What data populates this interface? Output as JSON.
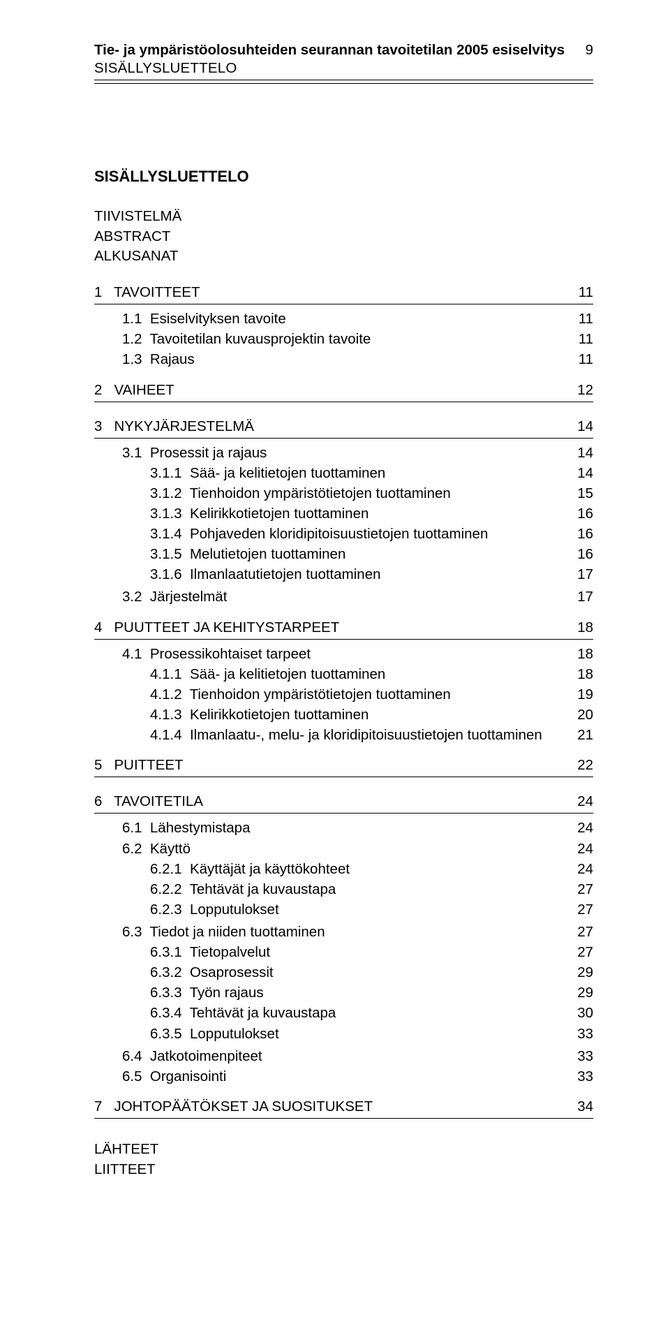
{
  "header": {
    "title": "Tie- ja ympäristöolosuhteiden seurannan tavoitetilan 2005 esiselvitys",
    "page_number": "9",
    "subtitle": "SISÄLLYSLUETTELO"
  },
  "toc_title": "SISÄLLYSLUETTELO",
  "preface": [
    "TIIVISTELMÄ",
    "ABSTRACT",
    "ALKUSANAT"
  ],
  "sections": [
    {
      "type": "lvl1",
      "num": "1",
      "text": "TAVOITTEET",
      "page": "11"
    },
    {
      "type": "lvl2",
      "num": "1.1",
      "text": "Esiselvityksen tavoite",
      "page": "11"
    },
    {
      "type": "lvl2",
      "num": "1.2",
      "text": "Tavoitetilan kuvausprojektin tavoite",
      "page": "11"
    },
    {
      "type": "lvl2",
      "num": "1.3",
      "text": "Rajaus",
      "page": "11"
    },
    {
      "type": "lvl1",
      "num": "2",
      "text": "VAIHEET",
      "page": "12"
    },
    {
      "type": "lvl1",
      "num": "3",
      "text": "NYKYJÄRJESTELMÄ",
      "page": "14"
    },
    {
      "type": "lvl2",
      "num": "3.1",
      "text": "Prosessit ja rajaus",
      "page": "14"
    },
    {
      "type": "lvl3",
      "num": "3.1.1",
      "text": "Sää- ja kelitietojen tuottaminen",
      "page": "14"
    },
    {
      "type": "lvl3",
      "num": "3.1.2",
      "text": "Tienhoidon ympäristötietojen tuottaminen",
      "page": "15"
    },
    {
      "type": "lvl3",
      "num": "3.1.3",
      "text": "Kelirikkotietojen tuottaminen",
      "page": "16"
    },
    {
      "type": "lvl3",
      "num": "3.1.4",
      "text": "Pohjaveden kloridipitoisuustietojen tuottaminen",
      "page": "16"
    },
    {
      "type": "lvl3",
      "num": "3.1.5",
      "text": "Melutietojen tuottaminen",
      "page": "16"
    },
    {
      "type": "lvl3",
      "num": "3.1.6",
      "text": "Ilmanlaatutietojen tuottaminen",
      "page": "17"
    },
    {
      "type": "lvl2",
      "num": "3.2",
      "text": "Järjestelmät",
      "page": "17"
    },
    {
      "type": "lvl1",
      "num": "4",
      "text": "PUUTTEET JA KEHITYSTARPEET",
      "page": "18"
    },
    {
      "type": "lvl2",
      "num": "4.1",
      "text": "Prosessikohtaiset tarpeet",
      "page": "18"
    },
    {
      "type": "lvl3",
      "num": "4.1.1",
      "text": "Sää- ja kelitietojen tuottaminen",
      "page": "18"
    },
    {
      "type": "lvl3",
      "num": "4.1.2",
      "text": "Tienhoidon ympäristötietojen tuottaminen",
      "page": "19"
    },
    {
      "type": "lvl3",
      "num": "4.1.3",
      "text": "Kelirikkotietojen tuottaminen",
      "page": "20"
    },
    {
      "type": "lvl3",
      "num": "4.1.4",
      "text": "Ilmanlaatu-, melu- ja kloridipitoisuustietojen tuottaminen",
      "page": "21"
    },
    {
      "type": "lvl1",
      "num": "5",
      "text": "PUITTEET",
      "page": "22"
    },
    {
      "type": "lvl1",
      "num": "6",
      "text": "TAVOITETILA",
      "page": "24"
    },
    {
      "type": "lvl2",
      "num": "6.1",
      "text": "Lähestymistapa",
      "page": "24"
    },
    {
      "type": "lvl2",
      "num": "6.2",
      "text": "Käyttö",
      "page": "24"
    },
    {
      "type": "lvl3",
      "num": "6.2.1",
      "text": "Käyttäjät ja käyttökohteet",
      "page": "24"
    },
    {
      "type": "lvl3",
      "num": "6.2.2",
      "text": "Tehtävät ja kuvaustapa",
      "page": "27"
    },
    {
      "type": "lvl3",
      "num": "6.2.3",
      "text": "Lopputulokset",
      "page": "27"
    },
    {
      "type": "lvl2",
      "num": "6.3",
      "text": "Tiedot ja niiden tuottaminen",
      "page": "27"
    },
    {
      "type": "lvl3",
      "num": "6.3.1",
      "text": "Tietopalvelut",
      "page": "27"
    },
    {
      "type": "lvl3",
      "num": "6.3.2",
      "text": "Osaprosessit",
      "page": "29"
    },
    {
      "type": "lvl3",
      "num": "6.3.3",
      "text": "Työn rajaus",
      "page": "29"
    },
    {
      "type": "lvl3",
      "num": "6.3.4",
      "text": "Tehtävät ja kuvaustapa",
      "page": "30"
    },
    {
      "type": "lvl3",
      "num": "6.3.5",
      "text": "Lopputulokset",
      "page": "33"
    },
    {
      "type": "lvl2",
      "num": "6.4",
      "text": "Jatkotoimenpiteet",
      "page": "33"
    },
    {
      "type": "lvl2",
      "num": "6.5",
      "text": "Organisointi",
      "page": "33"
    },
    {
      "type": "lvl1",
      "num": "7",
      "text": "JOHTOPÄÄTÖKSET JA SUOSITUKSET",
      "page": "34"
    }
  ],
  "appendix": [
    "LÄHTEET",
    "LIITTEET"
  ]
}
